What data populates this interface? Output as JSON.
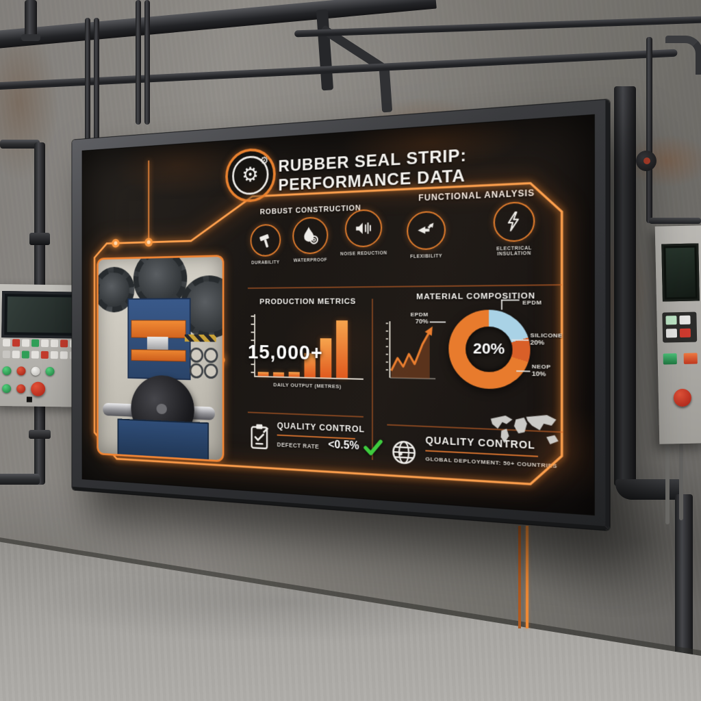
{
  "accent": "#f5913f",
  "scene_note": "infographic board mounted on industrial concrete wall with pipes, conduits and two control panels",
  "board": {
    "title": "RUBBER SEAL STRIP: PERFORMANCE DATA",
    "logo_icon": "gear-badge-icon",
    "robust": {
      "heading": "ROBUST CONSTRUCTION",
      "features": [
        {
          "icon": "hammer-icon",
          "label": "DURABILITY"
        },
        {
          "icon": "waterdrop-icon",
          "label": "WATERPROOF"
        },
        {
          "icon": "speaker-icon",
          "label": "NOISE REDUCTION"
        }
      ]
    },
    "functional": {
      "heading": "FUNCTIONAL ANALYSIS",
      "features": [
        {
          "icon": "flex-arrows-icon",
          "label": "FLEXIBILITY"
        },
        {
          "icon": "lightning-icon",
          "label": "ELECTRICAL INSULATION"
        }
      ]
    },
    "production": {
      "heading": "PRODUCTION METRICS",
      "stat": "15,000+",
      "caption": "DAILY OUTPUT (METRES)"
    },
    "composition": {
      "heading": "MATERIAL COMPOSITION"
    },
    "quality_left": {
      "heading": "QUALITY CONTROL",
      "metric_label": "DEFECT RATE",
      "metric_value": "<0.5%",
      "status_icon": "green-check-icon"
    },
    "quality_right": {
      "heading": "QUALITY CONTROL",
      "caption": "GLOBAL DEPLOYMENT: 50+ COUNTRIES",
      "icons": [
        "globe-icon",
        "world-map"
      ]
    }
  },
  "chart_data": [
    {
      "type": "bar",
      "title": "PRODUCTION METRICS",
      "categories": [
        "",
        "",
        "",
        "",
        "",
        ""
      ],
      "values": [
        7,
        7,
        8,
        38,
        62,
        90
      ],
      "unit": "relative height %",
      "overlay_value": "15,000+",
      "xlabel": "DAILY OUTPUT (METRES)",
      "ylabel": "",
      "grid": false,
      "bar_color": "orange gradient"
    },
    {
      "type": "line",
      "title": "output trend (unlabeled mini chart)",
      "points": [
        [
          8,
          78
        ],
        [
          17,
          60
        ],
        [
          25,
          72
        ],
        [
          33,
          54
        ],
        [
          41,
          68
        ],
        [
          52,
          40
        ],
        [
          62,
          22
        ]
      ],
      "style": "orange zigzag rising with arrowhead, rust-brown area fill, left axis with tick marks, no labels"
    },
    {
      "type": "pie",
      "subtype": "donut",
      "title": "MATERIAL COMPOSITION",
      "center_label": "20%",
      "segments": [
        {
          "label": "SILICONE",
          "value": 20,
          "color": "#a9d2e6"
        },
        {
          "label": "NEOP",
          "value": 10,
          "color": "#d95f28"
        },
        {
          "label": "EPDM",
          "value": 70,
          "color": "#e87b2d"
        }
      ],
      "callouts": [
        {
          "name": "EPDM",
          "value": "",
          "pos": "top"
        },
        {
          "name": "EPDM",
          "value": "70%",
          "pos": "left"
        },
        {
          "name": "SILICONE",
          "value": "20%",
          "pos": "right"
        },
        {
          "name": "NEOP",
          "value": "10%",
          "pos": "lower-right"
        }
      ]
    }
  ]
}
